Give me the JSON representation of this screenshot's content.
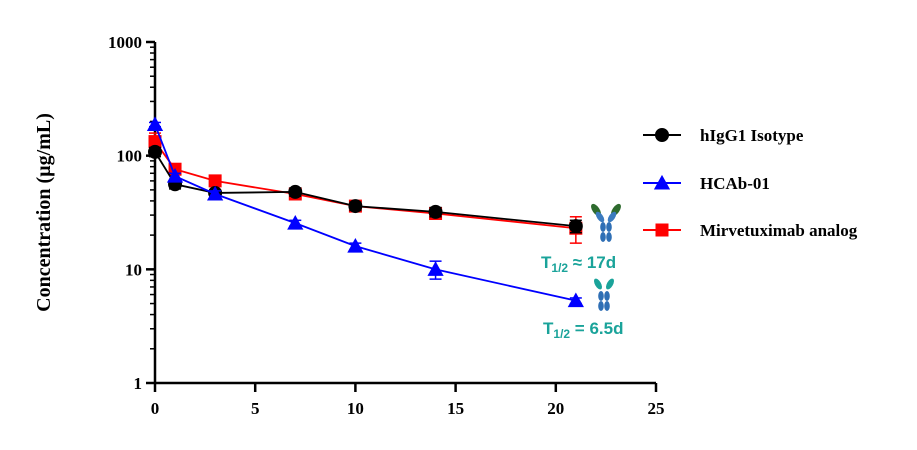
{
  "chart_data": {
    "type": "line",
    "title": "",
    "xlabel": "",
    "ylabel": "Concentration (µg/mL)",
    "xlim": [
      0,
      25
    ],
    "ylim": [
      1,
      1000
    ],
    "yscale": "log",
    "grid": false,
    "legend_position": "right",
    "x_ticks": [
      0,
      5,
      10,
      15,
      20,
      25
    ],
    "x_tick_labels": [
      "0",
      "5",
      "10",
      "15",
      "20",
      "25"
    ],
    "y_ticks": [
      1,
      10,
      100,
      1000
    ],
    "y_tick_labels": [
      "1",
      "10",
      "100",
      "1000"
    ],
    "series": [
      {
        "name": "hIgG1 Isotype",
        "color": "#000000",
        "marker": "circle",
        "x": [
          0,
          1,
          3,
          7,
          10,
          14,
          21
        ],
        "y": [
          108,
          56,
          47,
          48,
          36,
          32,
          24
        ],
        "err": [
          10,
          5,
          3,
          4,
          3,
          3,
          3
        ]
      },
      {
        "name": "HCAb-01",
        "color": "#0000FF",
        "marker": "triangle",
        "x": [
          0,
          1,
          3,
          7,
          10,
          14,
          21
        ],
        "y": [
          188,
          66,
          46,
          25.5,
          16,
          10,
          5.3
        ],
        "err": [
          8,
          4,
          3,
          1.5,
          1,
          1.8,
          0.3
        ]
      },
      {
        "name": "Mirvetuximab analog",
        "color": "#FF0000",
        "marker": "square",
        "x": [
          0,
          1,
          3,
          7,
          10,
          14,
          21
        ],
        "y": [
          133,
          76,
          60,
          46,
          36,
          31,
          23
        ],
        "err": [
          25,
          5,
          4,
          3,
          3,
          3,
          6
        ]
      }
    ],
    "annotations": [
      {
        "label": "T",
        "sub": "1/2",
        "rest": " ≈ 17d",
        "color": "#1AA39A",
        "icon": "antibody-igg-icon"
      },
      {
        "label": "T",
        "sub": "1/2",
        "rest": " = 6.5d",
        "color": "#1AA39A",
        "icon": "antibody-hcab-icon"
      }
    ]
  }
}
